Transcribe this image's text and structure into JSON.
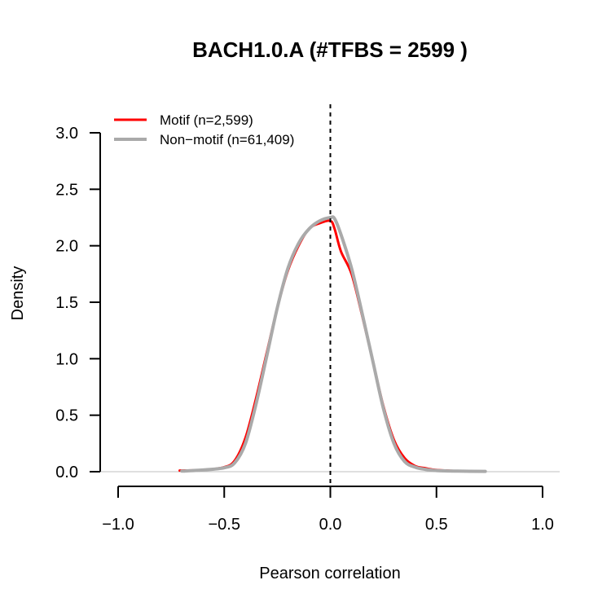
{
  "chart_data": {
    "type": "line",
    "title": "BACH1.0.A (#TFBS = 2599 )",
    "xlabel": "Pearson correlation",
    "ylabel": "Density",
    "xlim": [
      -1.0,
      1.0
    ],
    "ylim": [
      0,
      3.0
    ],
    "x_ticks": [
      "−1.0",
      "−0.5",
      "0.0",
      "0.5",
      "1.0"
    ],
    "y_ticks": [
      "0.0",
      "0.5",
      "1.0",
      "1.5",
      "2.0",
      "2.5",
      "3.0"
    ],
    "reference_line": {
      "x": 0.0,
      "style": "dashed"
    },
    "legend_position": "top-left",
    "series": [
      {
        "name": "Motif (n=2,599)",
        "color": "#ff0000",
        "x": [
          -0.71,
          -0.6,
          -0.5,
          -0.45,
          -0.4,
          -0.35,
          -0.3,
          -0.25,
          -0.2,
          -0.15,
          -0.1,
          -0.05,
          0.0,
          0.02,
          0.05,
          0.1,
          0.15,
          0.2,
          0.25,
          0.3,
          0.35,
          0.4,
          0.45,
          0.5,
          0.6
        ],
        "values": [
          0.01,
          0.015,
          0.04,
          0.1,
          0.3,
          0.65,
          1.05,
          1.45,
          1.78,
          2.0,
          2.15,
          2.2,
          2.22,
          2.15,
          1.95,
          1.75,
          1.38,
          0.98,
          0.58,
          0.28,
          0.12,
          0.05,
          0.03,
          0.015,
          0.005
        ]
      },
      {
        "name": "Non−motif (n=61,409)",
        "color": "#aaaaaa",
        "x": [
          -0.7,
          -0.6,
          -0.5,
          -0.45,
          -0.4,
          -0.35,
          -0.3,
          -0.25,
          -0.2,
          -0.15,
          -0.1,
          -0.05,
          0.0,
          0.02,
          0.05,
          0.1,
          0.15,
          0.2,
          0.25,
          0.3,
          0.35,
          0.4,
          0.45,
          0.5,
          0.6,
          0.73
        ],
        "values": [
          0.005,
          0.015,
          0.035,
          0.08,
          0.25,
          0.6,
          1.02,
          1.45,
          1.8,
          2.02,
          2.15,
          2.22,
          2.25,
          2.24,
          2.1,
          1.8,
          1.4,
          0.98,
          0.56,
          0.25,
          0.09,
          0.04,
          0.02,
          0.01,
          0.005,
          0.003
        ]
      }
    ]
  }
}
